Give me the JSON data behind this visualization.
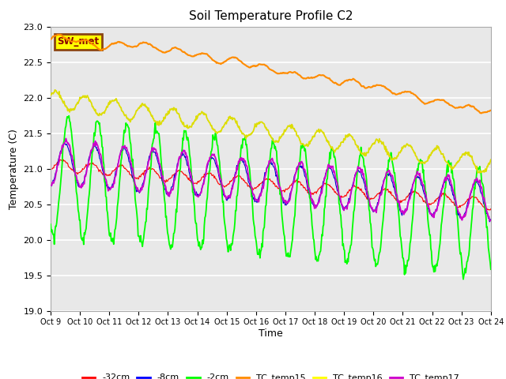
{
  "title": "Soil Temperature Profile C2",
  "xlabel": "Time",
  "ylabel": "Temperature (C)",
  "ylim": [
    19.0,
    23.0
  ],
  "yticks": [
    19.0,
    19.5,
    20.0,
    20.5,
    21.0,
    21.5,
    22.0,
    22.5,
    23.0
  ],
  "xtick_labels": [
    "Oct 9",
    "Oct 10",
    "Oct 11",
    "Oct 12",
    "Oct 13",
    "Oct 14",
    "Oct 15",
    "Oct 16",
    "Oct 17",
    "Oct 18",
    "Oct 19",
    "Oct 20",
    "Oct 21",
    "Oct 22",
    "Oct 23",
    "Oct 24"
  ],
  "plot_bg_color": "#e8e8e8",
  "grid_color": "white",
  "legend_entries": [
    "-32cm",
    "-8cm",
    "-2cm",
    "TC_temp15",
    "TC_temp16",
    "TC_temp17"
  ],
  "legend_colors": [
    "#ff0000",
    "#0000ff",
    "#00ff00",
    "#ff8c00",
    "#ffff00",
    "#cc00cc"
  ],
  "sw_met_box_color": "#ffff00",
  "sw_met_border_color": "#8b4513",
  "sw_met_text_color": "#8b0000",
  "tc15_color": "#ff8c00",
  "tc16_color": "#dddd00",
  "tc17_color": "#cc00cc",
  "neg2cm_color": "#00ff00",
  "neg8cm_color": "#0000cd",
  "neg32cm_color": "#ff0000"
}
